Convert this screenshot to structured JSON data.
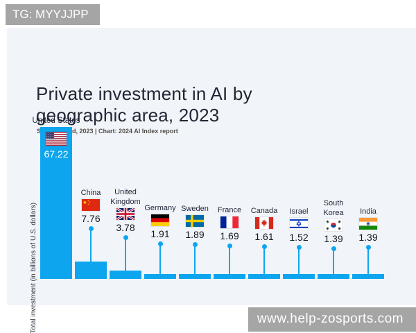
{
  "watermarks": {
    "top_left": "TG: MYYJJPP",
    "bottom_right": "www.help-zosports.com"
  },
  "chart_data": {
    "type": "bar",
    "title": "Private investment in AI by geographic area, 2023",
    "title_lines": [
      "Private investment in AI by",
      "geographic area, 2023"
    ],
    "source": "Source: Quid, 2023 | Chart: 2024 AI Index report",
    "ylabel": "Total investment (in billions of U.S. dollars)",
    "xlabel": "",
    "ylim": [
      0,
      67.22
    ],
    "grid": false,
    "legend": false,
    "value_labels": true,
    "leader_lines": true,
    "categories": [
      "United States",
      "China",
      "United Kingdom",
      "Germany",
      "Sweden",
      "France",
      "Canada",
      "Israel",
      "South Korea",
      "India"
    ],
    "label_lines": [
      [
        "United States"
      ],
      [
        "China"
      ],
      [
        "United",
        "Kingdom"
      ],
      [
        "Germany"
      ],
      [
        "Sweden"
      ],
      [
        "France"
      ],
      [
        "Canada"
      ],
      [
        "Israel"
      ],
      [
        "South",
        "Korea"
      ],
      [
        "India"
      ]
    ],
    "values": [
      67.22,
      7.76,
      3.78,
      1.91,
      1.89,
      1.69,
      1.61,
      1.52,
      1.39,
      1.39
    ],
    "flags": [
      "us",
      "cn",
      "gb",
      "de",
      "se",
      "fr",
      "ca",
      "il",
      "kr",
      "in"
    ],
    "colors": {
      "bar": "#0da6ee",
      "card_background": "#f1f5fa",
      "title": "#222634",
      "source_text": "#544e49",
      "value_text": "#15161e",
      "badge_background": "#a5a5a5",
      "badge_text": "#ffffff"
    }
  }
}
